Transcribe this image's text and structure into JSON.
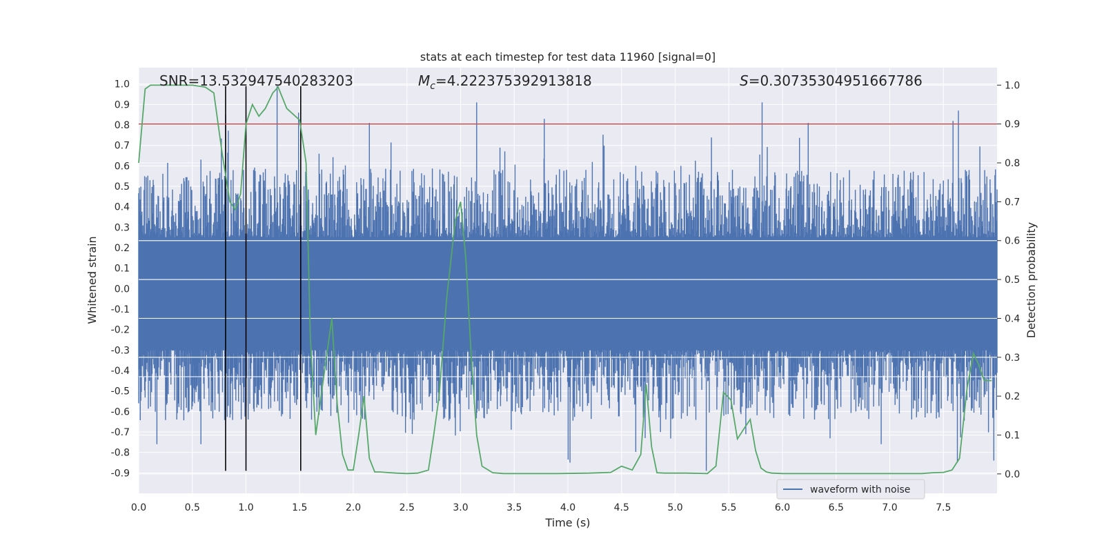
{
  "chart_data": {
    "type": "line",
    "title": "stats at each timestep for test data 11960 [signal=0]",
    "xlabel": "Time (s)",
    "ylabel_left": "Whitened strain",
    "ylabel_right": "Detection probability",
    "xlim": [
      0.0,
      8.0
    ],
    "ylim_left": [
      -1.0,
      1.08
    ],
    "ylim_right": [
      -0.05,
      1.045
    ],
    "x_ticks": [
      "0.0",
      "0.5",
      "1.0",
      "1.5",
      "2.0",
      "2.5",
      "3.0",
      "3.5",
      "4.0",
      "4.5",
      "5.0",
      "5.5",
      "6.0",
      "6.5",
      "7.0",
      "7.5"
    ],
    "x_tick_values": [
      0.0,
      0.5,
      1.0,
      1.5,
      2.0,
      2.5,
      3.0,
      3.5,
      4.0,
      4.5,
      5.0,
      5.5,
      6.0,
      6.5,
      7.0,
      7.5
    ],
    "y_left_ticks": [
      "1.0",
      "0.9",
      "0.8",
      "0.7",
      "0.6",
      "0.5",
      "0.4",
      "0.3",
      "0.2",
      "0.1",
      "0.0",
      "-0.1",
      "-0.2",
      "-0.3",
      "-0.4",
      "-0.5",
      "-0.6",
      "-0.7",
      "-0.8",
      "-0.9"
    ],
    "y_left_tick_values": [
      1.0,
      0.9,
      0.8,
      0.7,
      0.6,
      0.5,
      0.4,
      0.3,
      0.2,
      0.1,
      0.0,
      -0.1,
      -0.2,
      -0.3,
      -0.4,
      -0.5,
      -0.6,
      -0.7,
      -0.8,
      -0.9
    ],
    "y_right_ticks": [
      "1.0",
      "0.9",
      "0.8",
      "0.7",
      "0.6",
      "0.5",
      "0.4",
      "0.3",
      "0.2",
      "0.1",
      "0.0"
    ],
    "y_right_tick_values": [
      1.0,
      0.9,
      0.8,
      0.7,
      0.6,
      0.5,
      0.4,
      0.3,
      0.2,
      0.1,
      0.0
    ],
    "annotations": {
      "snr": "SNR=13.532947540283203",
      "mc_label": "M",
      "mc_sub": "c",
      "mc_value": "=4.222375392913818",
      "s_label": "S",
      "s_value": "=0.30735304951667786"
    },
    "legend": {
      "label": "waveform with noise",
      "position": "lower-right"
    },
    "threshold": {
      "value": 0.9,
      "axis": "right"
    },
    "vertical_markers": {
      "x": [
        0.81,
        1.0,
        1.51
      ],
      "ymin": -0.89,
      "ymax": 0.99
    },
    "waveform_envelope": {
      "name": "waveform with noise",
      "x_range": [
        0.0,
        8.0
      ],
      "typical_positive_peak": 0.45,
      "typical_negative_peak": -0.48,
      "notable_peaks": [
        {
          "x": 1.29,
          "y": 0.99
        },
        {
          "x": 3.15,
          "y": 0.91
        },
        {
          "x": 5.81,
          "y": 0.91
        },
        {
          "x": 7.64,
          "y": 0.87
        },
        {
          "x": 1.49,
          "y": 0.86
        },
        {
          "x": 0.81,
          "y": 0.85
        },
        {
          "x": 3.78,
          "y": 0.83
        },
        {
          "x": 6.24,
          "y": 0.81
        },
        {
          "x": 2.15,
          "y": 0.81
        },
        {
          "x": 7.59,
          "y": 0.82
        },
        {
          "x": 5.29,
          "y": -0.89
        },
        {
          "x": 7.63,
          "y": -0.85
        },
        {
          "x": 4.02,
          "y": -0.85
        },
        {
          "x": 0.58,
          "y": -0.76
        },
        {
          "x": 0.17,
          "y": -0.76
        },
        {
          "x": 6.92,
          "y": -0.76
        },
        {
          "x": 2.55,
          "y": -0.71
        },
        {
          "x": 4.72,
          "y": -0.73
        },
        {
          "x": 7.97,
          "y": -0.84
        }
      ],
      "color": "#4c72b0"
    },
    "series": [
      {
        "name": "detection probability",
        "axis": "right",
        "color": "#55a868",
        "x": [
          0.0,
          0.06,
          0.11,
          0.25,
          0.5,
          0.62,
          0.7,
          0.78,
          0.85,
          0.9,
          0.95,
          1.0,
          1.06,
          1.12,
          1.18,
          1.25,
          1.3,
          1.38,
          1.5,
          1.56,
          1.6,
          1.65,
          1.7,
          1.75,
          1.8,
          1.85,
          1.9,
          1.95,
          2.0,
          2.05,
          2.1,
          2.15,
          2.2,
          2.25,
          2.3,
          2.4,
          2.5,
          2.6,
          2.7,
          2.75,
          2.8,
          2.87,
          2.95,
          3.0,
          3.05,
          3.1,
          3.15,
          3.2,
          3.3,
          3.4,
          3.6,
          3.9,
          4.2,
          4.4,
          4.5,
          4.6,
          4.68,
          4.73,
          4.78,
          4.83,
          4.9,
          5.0,
          5.1,
          5.3,
          5.38,
          5.45,
          5.52,
          5.58,
          5.65,
          5.7,
          5.75,
          5.8,
          5.85,
          5.9,
          6.0,
          6.4,
          6.9,
          7.3,
          7.4,
          7.5,
          7.58,
          7.65,
          7.72,
          7.78,
          7.83,
          7.88,
          7.95
        ],
        "values": [
          0.8,
          0.99,
          1.0,
          1.0,
          1.0,
          0.995,
          0.98,
          0.82,
          0.7,
          0.68,
          0.72,
          0.9,
          0.95,
          0.92,
          0.94,
          0.98,
          0.995,
          0.94,
          0.91,
          0.8,
          0.35,
          0.1,
          0.2,
          0.3,
          0.4,
          0.18,
          0.05,
          0.01,
          0.01,
          0.1,
          0.2,
          0.04,
          0.005,
          0.005,
          0.004,
          0.002,
          0.001,
          0.002,
          0.01,
          0.1,
          0.2,
          0.45,
          0.65,
          0.7,
          0.55,
          0.3,
          0.1,
          0.02,
          0.003,
          0.001,
          0.001,
          0.001,
          0.002,
          0.004,
          0.02,
          0.01,
          0.05,
          0.23,
          0.07,
          0.003,
          0.002,
          0.002,
          0.002,
          0.001,
          0.02,
          0.21,
          0.19,
          0.09,
          0.12,
          0.14,
          0.06,
          0.015,
          0.005,
          0.002,
          0.001,
          0.001,
          0.001,
          0.001,
          0.003,
          0.004,
          0.01,
          0.04,
          0.22,
          0.31,
          0.28,
          0.24,
          0.24
        ]
      }
    ]
  }
}
